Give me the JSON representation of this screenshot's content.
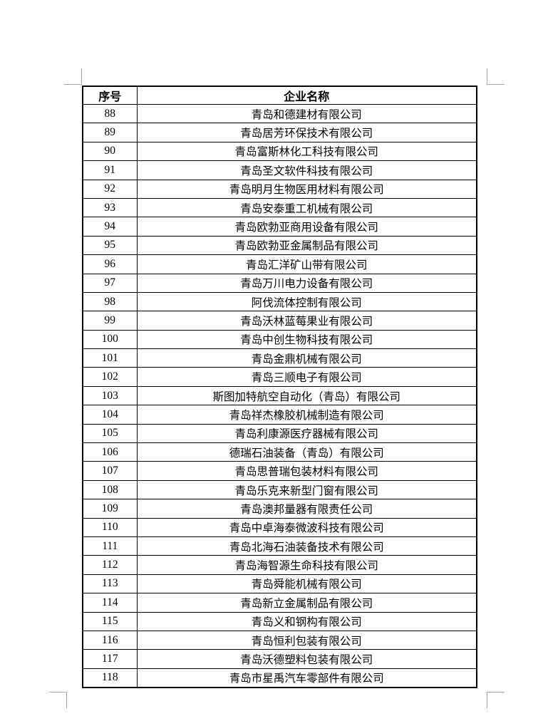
{
  "colors": {
    "table_border": "#000000",
    "crop_mark": "#a6a6a6",
    "page_background": "#ffffff"
  },
  "table": {
    "headers": [
      "序号",
      "企业名称"
    ],
    "rows": [
      {
        "no": "88",
        "name": "青岛和德建材有限公司"
      },
      {
        "no": "89",
        "name": "青岛居芳环保技术有限公司"
      },
      {
        "no": "90",
        "name": "青岛富斯林化工科技有限公司"
      },
      {
        "no": "91",
        "name": "青岛圣文软件科技有限公司"
      },
      {
        "no": "92",
        "name": "青岛明月生物医用材料有限公司"
      },
      {
        "no": "93",
        "name": "青岛安泰重工机械有限公司"
      },
      {
        "no": "94",
        "name": "青岛欧勃亚商用设备有限公司"
      },
      {
        "no": "95",
        "name": "青岛欧勃亚金属制品有限公司"
      },
      {
        "no": "96",
        "name": "青岛汇洋矿山带有限公司"
      },
      {
        "no": "97",
        "name": "青岛万川电力设备有限公司"
      },
      {
        "no": "98",
        "name": "阿伐流体控制有限公司"
      },
      {
        "no": "99",
        "name": "青岛沃林蓝莓果业有限公司"
      },
      {
        "no": "100",
        "name": "青岛中创生物科技有限公司"
      },
      {
        "no": "101",
        "name": "青岛金鼎机械有限公司"
      },
      {
        "no": "102",
        "name": "青岛三顺电子有限公司"
      },
      {
        "no": "103",
        "name": "斯图加特航空自动化（青岛）有限公司"
      },
      {
        "no": "104",
        "name": "青岛祥杰橡胶机械制造有限公司"
      },
      {
        "no": "105",
        "name": "青岛利康源医疗器械有限公司"
      },
      {
        "no": "106",
        "name": "德瑞石油装备（青岛）有限公司"
      },
      {
        "no": "107",
        "name": "青岛思普瑞包装材料有限公司"
      },
      {
        "no": "108",
        "name": "青岛乐克来新型门窗有限公司"
      },
      {
        "no": "109",
        "name": "青岛澳邦量器有限责任公司"
      },
      {
        "no": "110",
        "name": "青岛中卓海泰微波科技有限公司"
      },
      {
        "no": "111",
        "name": "青岛北海石油装备技术有限公司"
      },
      {
        "no": "112",
        "name": "青岛海智源生命科技有限公司"
      },
      {
        "no": "113",
        "name": "青岛舜能机械有限公司"
      },
      {
        "no": "114",
        "name": "青岛新立金属制品有限公司"
      },
      {
        "no": "115",
        "name": "青岛义和钢构有限公司"
      },
      {
        "no": "116",
        "name": "青岛恒利包装有限公司"
      },
      {
        "no": "117",
        "name": "青岛沃德塑料包装有限公司"
      },
      {
        "no": "118",
        "name": "青岛市星禹汽车零部件有限公司"
      }
    ]
  }
}
